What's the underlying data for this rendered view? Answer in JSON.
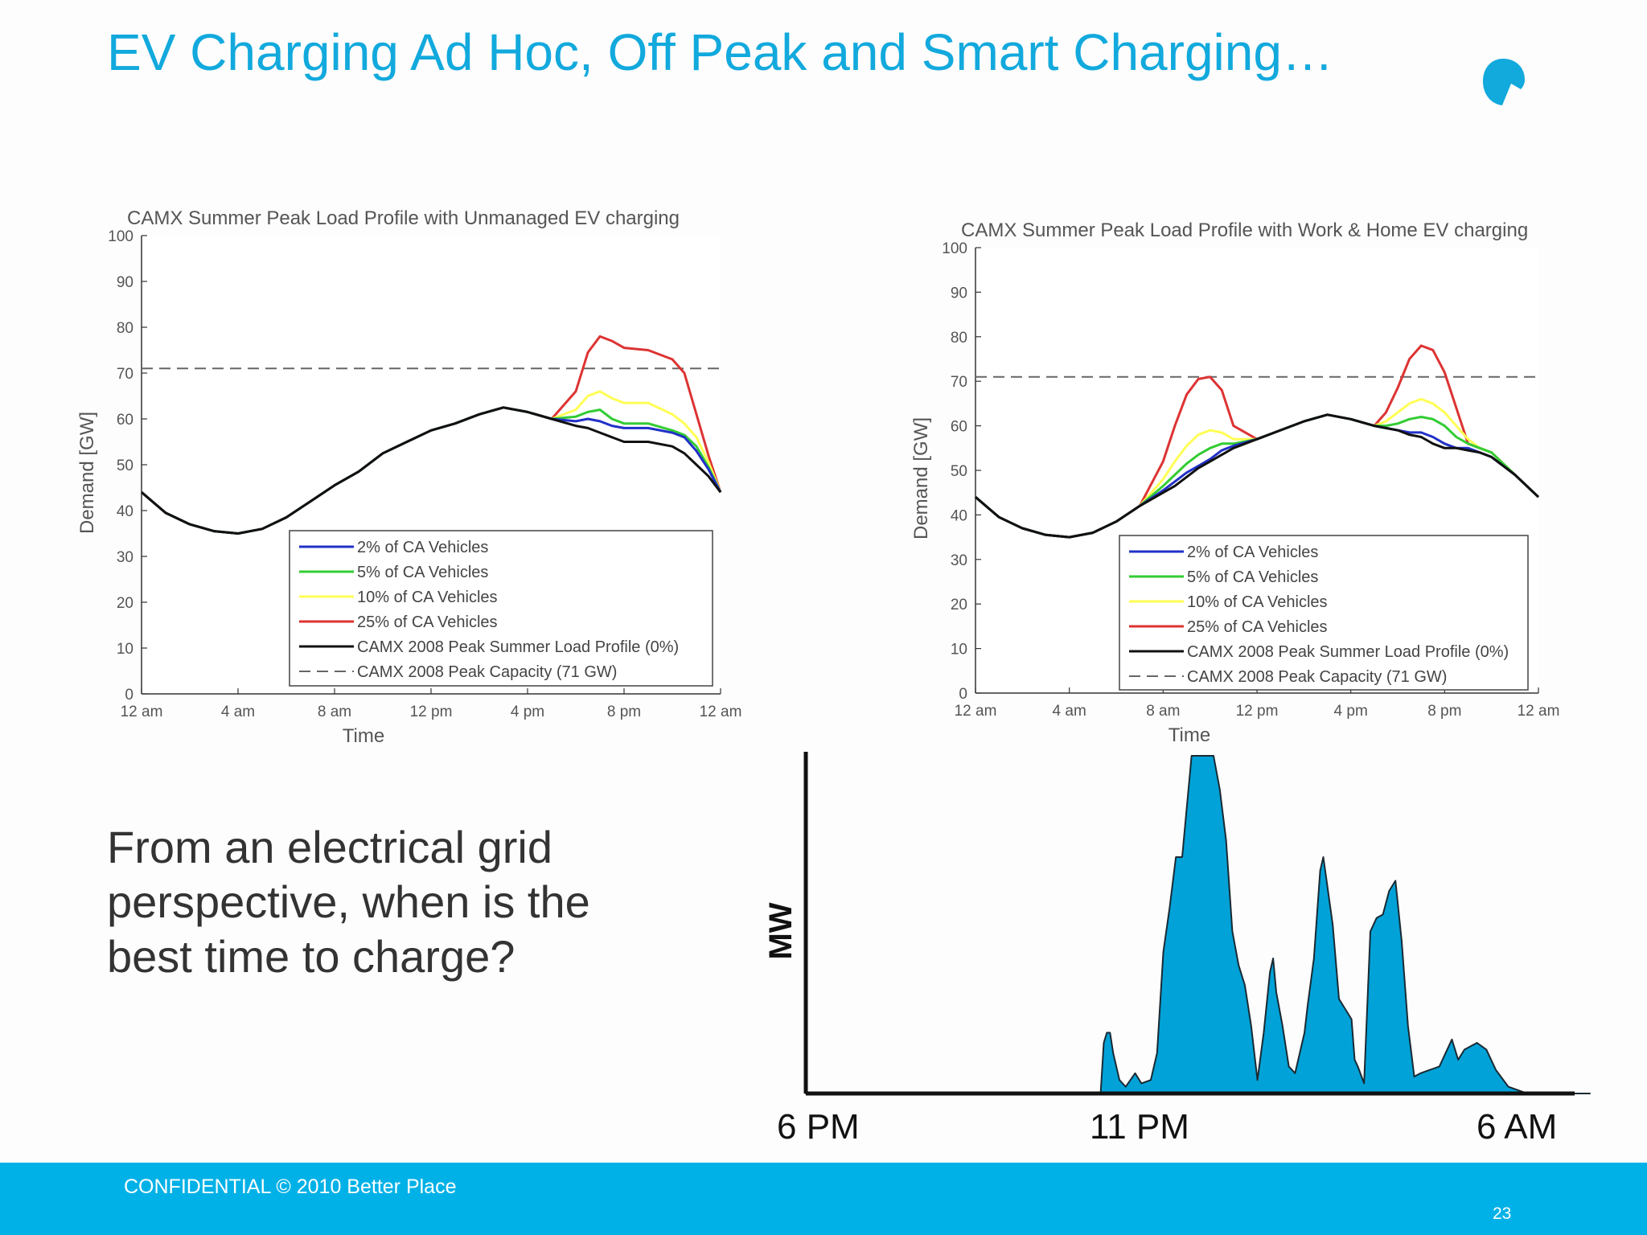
{
  "slide": {
    "title": "EV Charging Ad Hoc, Off Peak and Smart Charging…",
    "question": "From an electrical grid perspective, when is the best time to charge?",
    "footer_text": "CONFIDENTIAL © 2010 Better Place",
    "page_number": "23",
    "accent_color": "#12a9dd",
    "footer_color": "#00b1e7"
  },
  "chart_data": [
    {
      "type": "line",
      "title": "CAMX Summer Peak Load Profile with Unmanaged EV charging",
      "xlabel": "Time",
      "ylabel": "Demand [GW]",
      "xlim": [
        0,
        24
      ],
      "ylim": [
        0,
        100
      ],
      "xticks": [
        0,
        4,
        8,
        12,
        16,
        20,
        24
      ],
      "xtick_labels": [
        "12 am",
        "4 am",
        "8 am",
        "12 pm",
        "4 pm",
        "8 pm",
        "12 am"
      ],
      "yticks": [
        0,
        10,
        20,
        30,
        40,
        50,
        60,
        70,
        80,
        90,
        100
      ],
      "legend_position": "bottom-center",
      "x": [
        0,
        1,
        2,
        3,
        4,
        5,
        6,
        7,
        8,
        9,
        10,
        11,
        12,
        13,
        14,
        15,
        16,
        17,
        18,
        18.5,
        19,
        19.5,
        20,
        21,
        22,
        22.5,
        23,
        23.5,
        24
      ],
      "series": [
        {
          "name": "2% of CA Vehicles",
          "color": "#2230c8",
          "style": "solid",
          "values": [
            44,
            39.5,
            37,
            35.5,
            35,
            36,
            38.5,
            42,
            45.5,
            48.5,
            52.5,
            55,
            57.5,
            59,
            61,
            62.5,
            61.5,
            60,
            59.5,
            60,
            59.5,
            58.5,
            58,
            58,
            57,
            56,
            53,
            49,
            44
          ]
        },
        {
          "name": "5% of CA Vehicles",
          "color": "#33cc33",
          "style": "solid",
          "values": [
            44,
            39.5,
            37,
            35.5,
            35,
            36,
            38.5,
            42,
            45.5,
            48.5,
            52.5,
            55,
            57.5,
            59,
            61,
            62.5,
            61.5,
            60,
            60.5,
            61.5,
            62,
            60,
            59,
            59,
            57.5,
            56.5,
            54,
            49.5,
            44
          ]
        },
        {
          "name": "10% of CA Vehicles",
          "color": "#ffff55",
          "style": "solid",
          "values": [
            44,
            39.5,
            37,
            35.5,
            35,
            36,
            38.5,
            42,
            45.5,
            48.5,
            52.5,
            55,
            57.5,
            59,
            61,
            62.5,
            61.5,
            60,
            62,
            65,
            66,
            64.5,
            63.5,
            63.5,
            61,
            59,
            56,
            50.5,
            44
          ]
        },
        {
          "name": "25% of CA Vehicles",
          "color": "#dd3333",
          "style": "solid",
          "values": [
            44,
            39.5,
            37,
            35.5,
            35,
            36,
            38.5,
            42,
            45.5,
            48.5,
            52.5,
            55,
            57.5,
            59,
            61,
            62.5,
            61.5,
            60,
            66,
            74.5,
            78,
            77,
            75.5,
            75,
            73,
            70,
            61,
            52,
            44
          ]
        },
        {
          "name": "CAMX 2008 Peak Summer Load Profile (0%)",
          "color": "#111111",
          "style": "solid",
          "values": [
            44,
            39.5,
            37,
            35.5,
            35,
            36,
            38.5,
            42,
            45.5,
            48.5,
            52.5,
            55,
            57.5,
            59,
            61,
            62.5,
            61.5,
            60,
            58.5,
            58,
            57,
            56,
            55,
            55,
            54,
            52.5,
            50,
            47.5,
            44
          ]
        },
        {
          "name": "CAMX 2008 Peak Capacity (71 GW)",
          "color": "#666666",
          "style": "dashed",
          "values": [
            71,
            71,
            71,
            71,
            71,
            71,
            71,
            71,
            71,
            71,
            71,
            71,
            71,
            71,
            71,
            71,
            71,
            71,
            71,
            71,
            71,
            71,
            71,
            71,
            71,
            71,
            71,
            71,
            71
          ]
        }
      ]
    },
    {
      "type": "line",
      "title": "CAMX Summer Peak Load Profile with Work & Home EV charging",
      "xlabel": "Time",
      "ylabel": "Demand [GW]",
      "xlim": [
        0,
        24
      ],
      "ylim": [
        0,
        100
      ],
      "xticks": [
        0,
        4,
        8,
        12,
        16,
        20,
        24
      ],
      "xtick_labels": [
        "12 am",
        "4 am",
        "8 am",
        "12 pm",
        "4 pm",
        "8 pm",
        "12 am"
      ],
      "yticks": [
        0,
        10,
        20,
        30,
        40,
        50,
        60,
        70,
        80,
        90,
        100
      ],
      "legend_position": "bottom-center",
      "x": [
        0,
        1,
        2,
        3,
        4,
        5,
        6,
        7,
        8,
        8.5,
        9,
        9.5,
        10,
        10.5,
        11,
        12,
        13,
        14,
        15,
        16,
        17,
        17.5,
        18,
        18.5,
        19,
        19.5,
        20,
        20.5,
        21,
        21.5,
        22,
        23,
        24
      ],
      "series": [
        {
          "name": "2% of CA Vehicles",
          "color": "#2230c8",
          "style": "solid",
          "values": [
            44,
            39.5,
            37,
            35.5,
            35,
            36,
            38.5,
            42,
            45.5,
            47.5,
            49.5,
            51,
            52.5,
            54.5,
            55.5,
            57,
            59,
            61,
            62.5,
            61.5,
            60,
            59.5,
            59,
            58.5,
            58.5,
            57.5,
            56,
            55,
            55,
            54,
            53,
            49,
            44
          ]
        },
        {
          "name": "5% of CA Vehicles",
          "color": "#33cc33",
          "style": "solid",
          "values": [
            44,
            39.5,
            37,
            35.5,
            35,
            36,
            38.5,
            42,
            46.5,
            49,
            51.5,
            53.5,
            55,
            56,
            56,
            57,
            59,
            61,
            62.5,
            61.5,
            60,
            60,
            60.5,
            61.5,
            62,
            61.5,
            60,
            57.5,
            56,
            55,
            54,
            49,
            44
          ]
        },
        {
          "name": "10% of CA Vehicles",
          "color": "#ffff55",
          "style": "solid",
          "values": [
            44,
            39.5,
            37,
            35.5,
            35,
            36,
            38.5,
            42,
            48,
            52,
            55.5,
            58,
            59,
            58.5,
            57,
            57,
            59,
            61,
            62.5,
            61.5,
            60,
            61,
            63,
            65,
            66,
            65,
            63,
            60,
            57,
            55,
            54,
            49,
            44
          ]
        },
        {
          "name": "25% of CA Vehicles",
          "color": "#dd3333",
          "style": "solid",
          "values": [
            44,
            39.5,
            37,
            35.5,
            35,
            36,
            38.5,
            42,
            52,
            60,
            67,
            70.5,
            71,
            68,
            60,
            57,
            59,
            61,
            62.5,
            61.5,
            60,
            63,
            68.5,
            75,
            78,
            77,
            72,
            64,
            56,
            55,
            54,
            49,
            44
          ]
        },
        {
          "name": "CAMX 2008 Peak Summer Load Profile (0%)",
          "color": "#111111",
          "style": "solid",
          "values": [
            44,
            39.5,
            37,
            35.5,
            35,
            36,
            38.5,
            42,
            45,
            46.5,
            48.5,
            50.5,
            52,
            53.5,
            55,
            57,
            59,
            61,
            62.5,
            61.5,
            60,
            59.5,
            59,
            58,
            57.5,
            56,
            55,
            55,
            54.5,
            54,
            53,
            49,
            44
          ]
        },
        {
          "name": "CAMX 2008 Peak Capacity (71 GW)",
          "color": "#666666",
          "style": "dashed",
          "values": [
            71,
            71,
            71,
            71,
            71,
            71,
            71,
            71,
            71,
            71,
            71,
            71,
            71,
            71,
            71,
            71,
            71,
            71,
            71,
            71,
            71,
            71,
            71,
            71,
            71,
            71,
            71,
            71,
            71,
            71,
            71,
            71,
            71
          ]
        }
      ]
    },
    {
      "type": "area",
      "title": "",
      "xlabel": "",
      "ylabel": "MW",
      "xlim": [
        0,
        12.5
      ],
      "ylim": [
        0,
        100
      ],
      "xticks": [
        0,
        5,
        12
      ],
      "xtick_labels": [
        "6 PM",
        "11 PM",
        "6 AM"
      ],
      "fill_color": "#00a2d8",
      "x": [
        0,
        4.7,
        4.75,
        4.8,
        4.85,
        4.9,
        5.0,
        5.1,
        5.25,
        5.35,
        5.5,
        5.6,
        5.7,
        5.8,
        5.9,
        6.0,
        6.05,
        6.15,
        6.25,
        6.5,
        6.6,
        6.7,
        6.8,
        6.9,
        7.0,
        7.1,
        7.15,
        7.2,
        7.3,
        7.4,
        7.45,
        7.5,
        7.6,
        7.7,
        7.8,
        7.95,
        8.0,
        8.1,
        8.2,
        8.25,
        8.4,
        8.5,
        8.7,
        8.75,
        8.8,
        8.9,
        9.0,
        9.1,
        9.2,
        9.3,
        9.4,
        9.5,
        9.6,
        9.7,
        9.8,
        9.95,
        10.1,
        10.3,
        10.4,
        10.5,
        10.7,
        10.85,
        10.9,
        11.0,
        11.2,
        11.5,
        12.5
      ],
      "values": [
        0,
        0,
        15,
        18,
        18,
        12,
        4,
        2,
        6,
        3,
        4,
        12,
        42,
        55,
        70,
        70,
        80,
        100,
        100,
        100,
        90,
        75,
        48,
        38,
        32,
        20,
        12,
        4,
        18,
        36,
        40,
        30,
        20,
        8,
        6,
        18,
        26,
        40,
        66,
        70,
        50,
        28,
        22,
        10,
        8,
        3,
        48,
        52,
        53,
        60,
        63,
        45,
        20,
        5,
        6,
        7,
        8,
        16,
        10,
        13,
        15,
        13,
        11,
        7,
        2,
        0,
        0
      ]
    }
  ]
}
